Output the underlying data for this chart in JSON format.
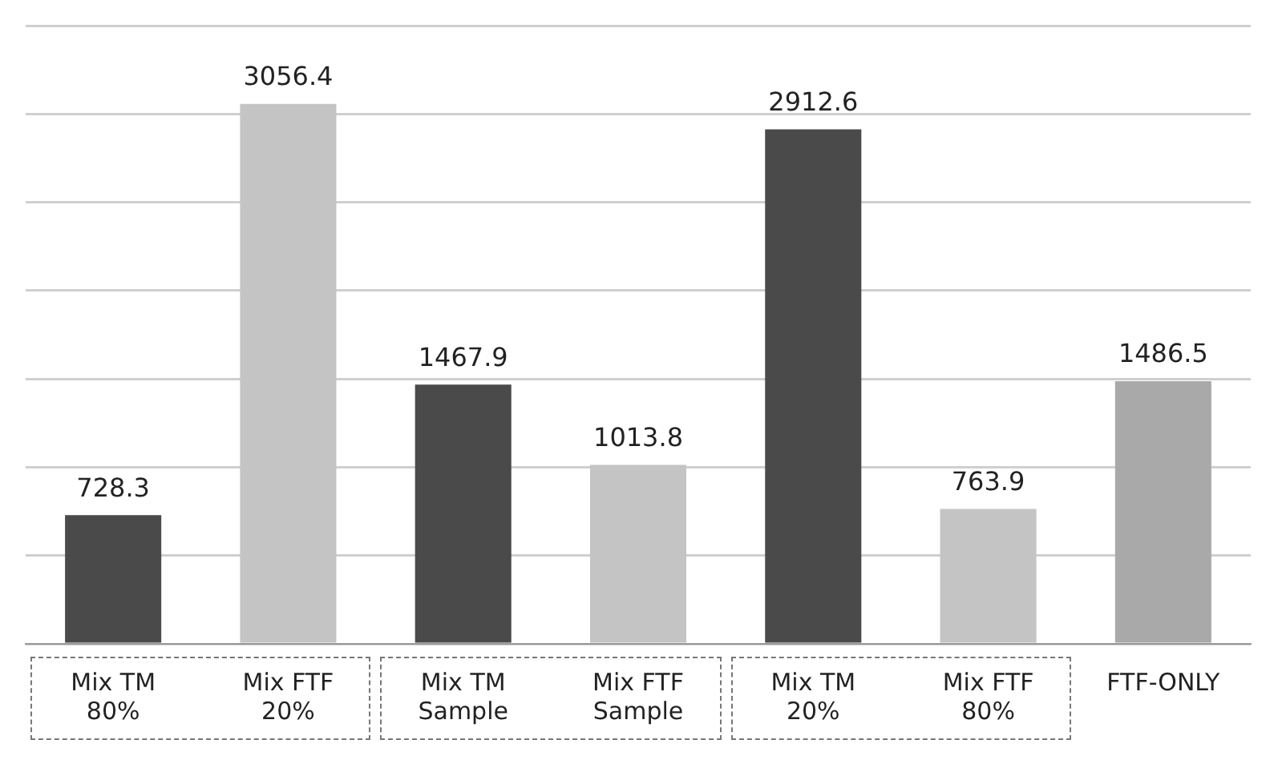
{
  "chart_data": {
    "type": "bar",
    "categories": [
      "Mix TM\n80%",
      "Mix FTF\n20%",
      "Mix TM\nSample",
      "Mix FTF\nSample",
      "Mix TM\n20%",
      "Mix FTF\n80%",
      "FTF-ONLY"
    ],
    "values": [
      728.3,
      3056.4,
      1467.9,
      1013.8,
      2912.6,
      763.9,
      1486.5
    ],
    "colors": [
      "#4a4a4a",
      "#c4c4c4",
      "#4a4a4a",
      "#c4c4c4",
      "#4a4a4a",
      "#c4c4c4",
      "#a9a9a9"
    ],
    "ylim": [
      0,
      3500
    ],
    "yticks": [
      {
        "value": 0,
        "label": null
      },
      {
        "value": 500,
        "label": null
      },
      {
        "value": 1000,
        "label": null
      },
      {
        "value": 1500,
        "label": null
      },
      {
        "value": 2000,
        "label": null
      },
      {
        "value": 2500,
        "label": null
      },
      {
        "value": 3000,
        "label": null
      },
      {
        "value": 3500,
        "label": null
      }
    ],
    "tick_labels": "x",
    "grid": "y",
    "data_labels": true,
    "legend": false
  }
}
